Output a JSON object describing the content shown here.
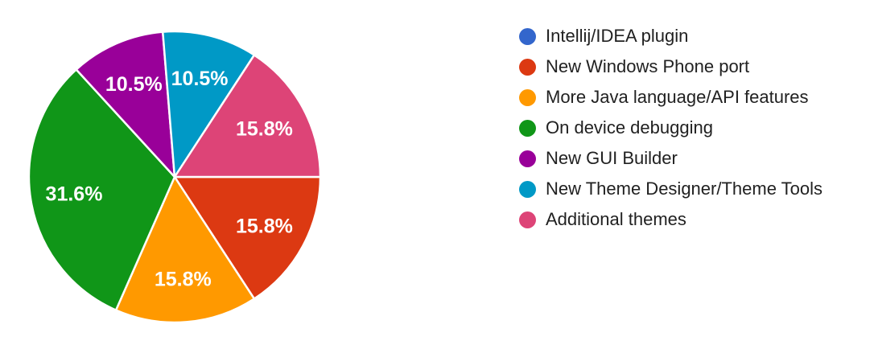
{
  "page": {
    "background_color": "#ffffff"
  },
  "chart_data": {
    "type": "pie",
    "title": "",
    "legend_position": "right",
    "start_angle_deg": 90,
    "slice_border_color": "#ffffff",
    "slice_label_color": "#ffffff",
    "legend_text_color": "#212121",
    "slices": [
      {
        "key": "intellij-idea-plugin",
        "label": "Intellij/IDEA plugin",
        "value_pct": 0,
        "label_text": "",
        "color": "#3366CC"
      },
      {
        "key": "new-windows-phone-port",
        "label": "New Windows Phone port",
        "value_pct": 15.8,
        "label_text": "15.8%",
        "color": "#DC3912"
      },
      {
        "key": "more-java-language-api-features",
        "label": "More Java language/API features",
        "value_pct": 15.8,
        "label_text": "15.8%",
        "color": "#FF9900"
      },
      {
        "key": "on-device-debugging",
        "label": "On device debugging",
        "value_pct": 31.6,
        "label_text": "31.6%",
        "color": "#109618"
      },
      {
        "key": "new-gui-builder",
        "label": "New GUI Builder",
        "value_pct": 10.5,
        "label_text": "10.5%",
        "color": "#990099"
      },
      {
        "key": "new-theme-designer-theme-tools",
        "label": "New Theme Designer/Theme Tools",
        "value_pct": 10.5,
        "label_text": "10.5%",
        "color": "#0099C6"
      },
      {
        "key": "additional-themes",
        "label": "Additional themes",
        "value_pct": 15.8,
        "label_text": "15.8%",
        "color": "#DD4477"
      }
    ]
  }
}
